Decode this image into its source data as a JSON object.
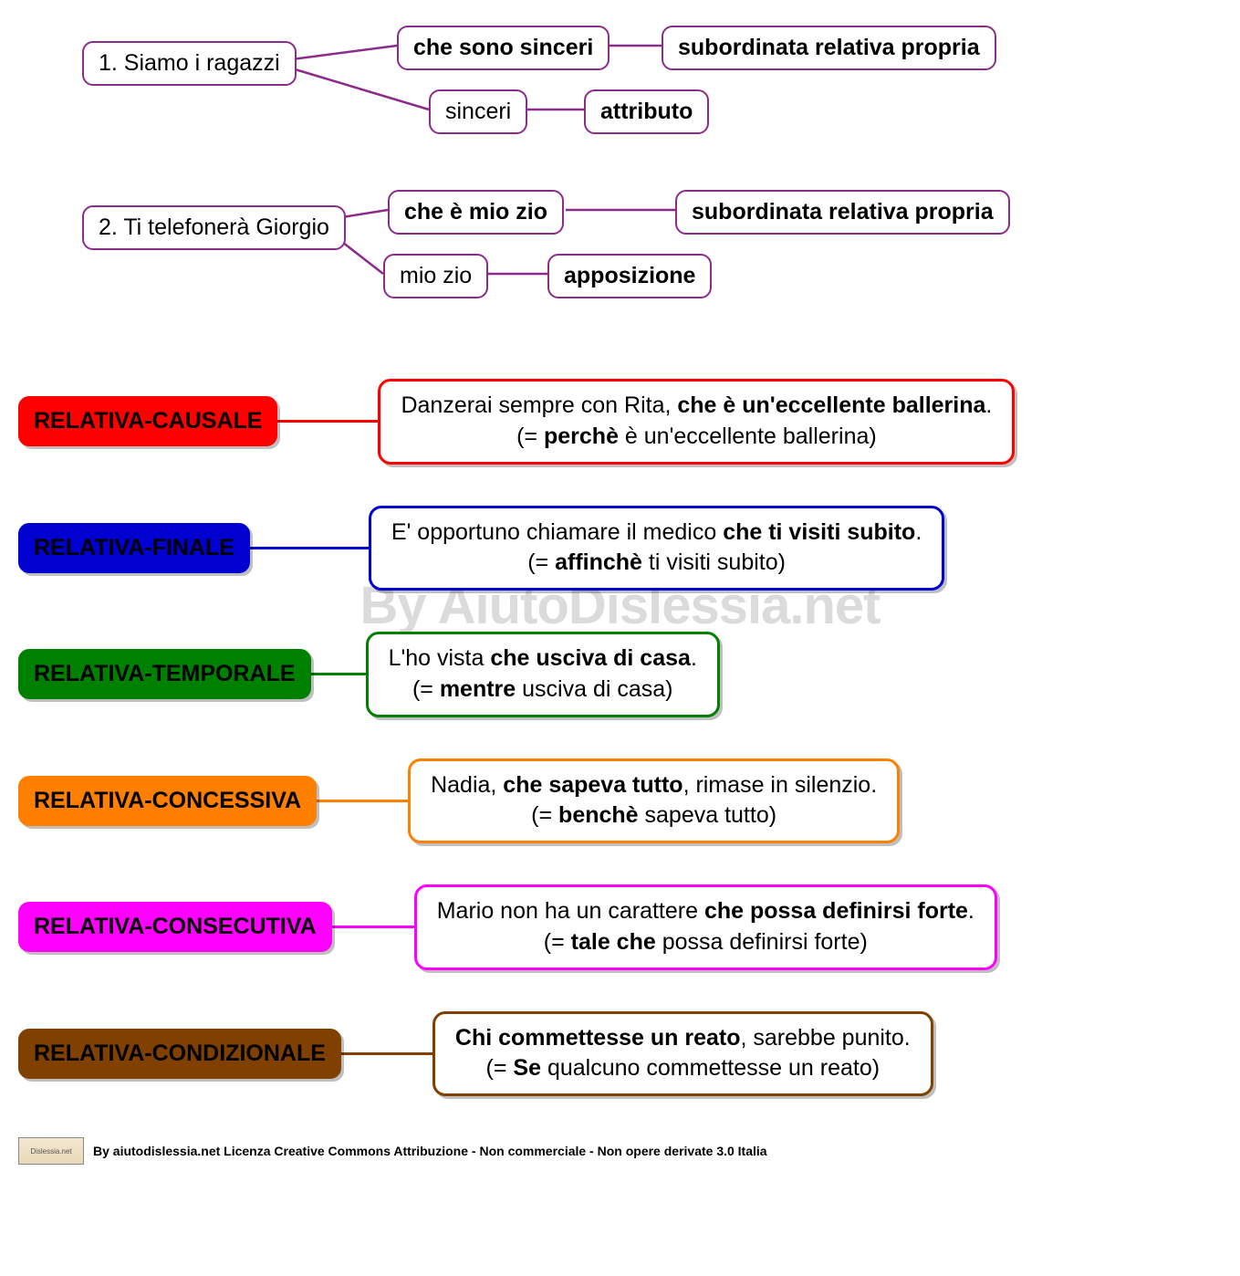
{
  "colors": {
    "purple": "#8b2c8b",
    "watermark": "#bfbfbf"
  },
  "watermark": "By AiutoDislessia.net",
  "tree1": {
    "root": "1. Siamo i ragazzi",
    "branch1": {
      "mid": "che sono sinceri",
      "end": "subordinata relativa propria"
    },
    "branch2": {
      "mid": "sinceri",
      "end": "attributo"
    },
    "color": "#8b2c8b"
  },
  "tree2": {
    "root": "2. Ti telefonerà Giorgio",
    "branch1": {
      "mid": "che è mio zio",
      "end": "subordinata relativa propria"
    },
    "branch2": {
      "mid": "mio zio",
      "end": "apposizione"
    },
    "color": "#8b2c8b"
  },
  "relatives": [
    {
      "label": "RELATIVA-CAUSALE",
      "label_fill": "#ff0000",
      "label_text_color": "#000000",
      "border_color": "#ff0000",
      "conn_width": 110,
      "example_html": "Danzerai sempre con Rita, <b>che è un'eccellente ballerina</b>.<br>(= <b>perchè</b> è un'eccellente ballerina)"
    },
    {
      "label": "RELATIVA-FINALE",
      "label_fill": "#0000d0",
      "label_text_color": "#000000",
      "border_color": "#0000d0",
      "conn_width": 130,
      "example_html": "E' opportuno chiamare il medico <b>che ti visiti subito</b>.<br>(= <b>affinchè</b> ti visiti subito)"
    },
    {
      "label": "RELATIVA-TEMPORALE",
      "label_fill": "#008000",
      "label_text_color": "#000000",
      "border_color": "#008000",
      "conn_width": 60,
      "example_html": "L'ho vista <b>che usciva di casa</b>.<br>(= <b>mentre</b> usciva di casa)"
    },
    {
      "label": "RELATIVA-CONCESSIVA",
      "label_fill": "#ff8000",
      "label_text_color": "#000000",
      "border_color": "#ff8000",
      "conn_width": 100,
      "example_html": "Nadia, <b>che sapeva tutto</b>, rimase in silenzio.<br>(= <b>benchè</b> sapeva tutto)"
    },
    {
      "label": "RELATIVA-CONSECUTIVA",
      "label_fill": "#ff00ff",
      "label_text_color": "#000000",
      "border_color": "#ff00ff",
      "conn_width": 90,
      "example_html": "Mario non ha un carattere <b>che possa definirsi forte</b>.<br>(= <b>tale che</b> possa definirsi forte)"
    },
    {
      "label": "RELATIVA-CONDIZIONALE",
      "label_fill": "#804000",
      "label_text_color": "#000000",
      "border_color": "#804000",
      "conn_width": 100,
      "example_html": "<b>Chi commettesse un reato</b>, sarebbe punito.<br>(= <b>Se</b> qualcuno commettesse un reato)"
    }
  ],
  "footer": {
    "logo_text": "Dislessia.net",
    "text": "By aiutodislessia.net Licenza Creative Commons Attribuzione - Non commerciale - Non opere derivate 3.0 Italia"
  }
}
